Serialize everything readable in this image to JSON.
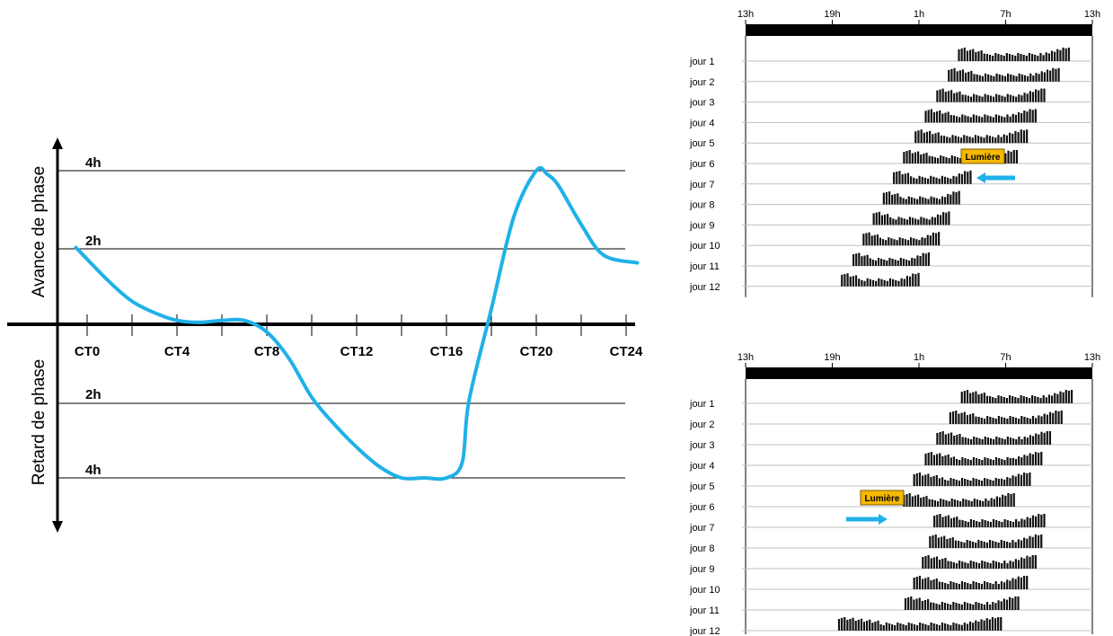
{
  "prc": {
    "y_top_label": "Avance de phase",
    "y_bottom_label": "Retard de phase",
    "hline_labels": [
      "4h",
      "2h",
      "2h",
      "4h"
    ],
    "ticks": [
      "CT0",
      "CT4",
      "CT8",
      "CT12",
      "CT16",
      "CT20",
      "CT24"
    ],
    "curve_color": "#1fb1e8"
  },
  "actograms": [
    {
      "name": "advance",
      "time_labels": [
        "13h",
        "19h",
        "1h",
        "7h",
        "13h"
      ],
      "days": [
        "jour 1",
        "jour 2",
        "jour 3",
        "jour 4",
        "jour 5",
        "jour 6",
        "jour 7",
        "jour 8",
        "jour 9",
        "jour 10",
        "jour 11",
        "jour 12"
      ],
      "light_label": "Lumière",
      "onset_hours": [
        14.7,
        14.0,
        13.2,
        12.4,
        11.7,
        10.9,
        10.2,
        9.5,
        8.8,
        8.1,
        7.4,
        6.6
      ],
      "offset_hours": [
        22.5,
        21.8,
        20.8,
        20.2,
        19.6,
        18.9,
        15.7,
        14.9,
        14.2,
        13.5,
        12.8,
        12.1
      ],
      "light_day": 6,
      "arrow_direction": "left",
      "colors": {
        "light_box": "#f5b800",
        "arrow": "#1fb1e8"
      }
    },
    {
      "name": "delay",
      "time_labels": [
        "13h",
        "19h",
        "1h",
        "7h",
        "13h"
      ],
      "days": [
        "jour 1",
        "jour 2",
        "jour 3",
        "jour 4",
        "jour 5",
        "jour 6",
        "jour 7",
        "jour 8",
        "jour 9",
        "jour 10",
        "jour 11",
        "jour 12"
      ],
      "light_label": "Lumière",
      "onset_hours": [
        14.9,
        14.1,
        13.2,
        12.4,
        11.6,
        10.9,
        13.0,
        12.7,
        12.2,
        11.6,
        11.0,
        6.4
      ],
      "offset_hours": [
        22.7,
        22.0,
        21.2,
        20.6,
        19.8,
        18.7,
        20.8,
        20.6,
        20.2,
        19.6,
        19.0,
        17.8
      ],
      "light_day": 6,
      "arrow_direction": "right",
      "colors": {
        "light_box": "#f5b800",
        "arrow": "#1fb1e8"
      }
    }
  ],
  "chart_data": [
    {
      "type": "line",
      "xlabel": "",
      "ylabel_top": "Avance de phase",
      "ylabel_bottom": "Retard de phase",
      "x_ticks": [
        "CT0",
        "CT4",
        "CT8",
        "CT12",
        "CT16",
        "CT20",
        "CT24"
      ],
      "x": [
        -0.5,
        1,
        2,
        3,
        4,
        5,
        6,
        7,
        8,
        9,
        10,
        11,
        12,
        13,
        14,
        15,
        16,
        16.7,
        17,
        18,
        19,
        20,
        20.5,
        21,
        22,
        23,
        24.5
      ],
      "y": [
        2.0,
        1.1,
        0.6,
        0.3,
        0.1,
        0.05,
        0.1,
        0.1,
        -0.2,
        -0.9,
        -1.9,
        -2.6,
        -3.2,
        -3.7,
        -4.0,
        -4.0,
        -4.0,
        -3.6,
        -2.0,
        0.4,
        2.8,
        4.0,
        3.9,
        3.6,
        2.6,
        1.8,
        1.6
      ],
      "ylim": [
        -4,
        4
      ],
      "units": "h"
    }
  ]
}
